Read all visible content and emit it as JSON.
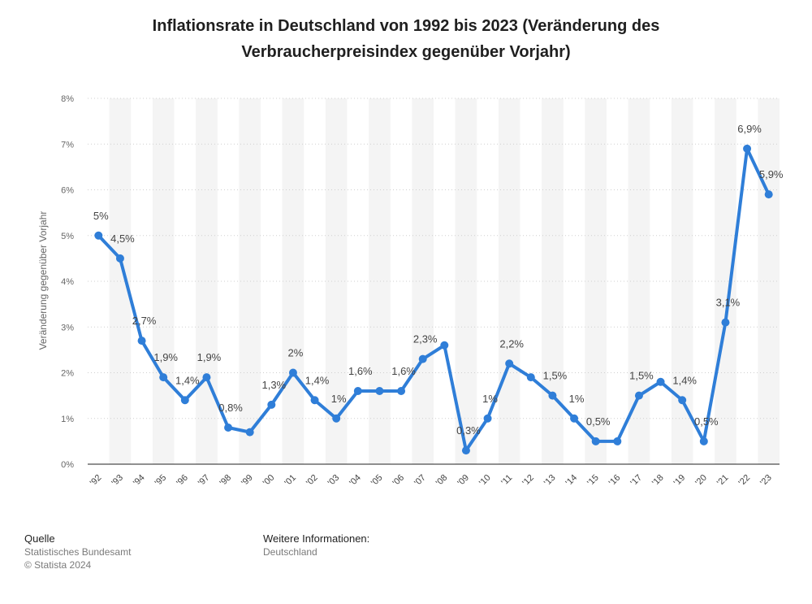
{
  "chart_data": {
    "type": "line",
    "title": "Inflationsrate in Deutschland von 1992 bis 2023 (Veränderung des Verbraucherpreisindex gegenüber Vorjahr)",
    "ylabel": "Veränderung gegenüber Vorjahr",
    "xlabel": "",
    "ylim": [
      0,
      8
    ],
    "yticks": [
      "0%",
      "1%",
      "2%",
      "3%",
      "4%",
      "5%",
      "6%",
      "7%",
      "8%"
    ],
    "categories": [
      "'92",
      "'93",
      "'94",
      "'95",
      "'96",
      "'97",
      "'98",
      "'99",
      "'00",
      "'01",
      "'02",
      "'03",
      "'04",
      "'05",
      "'06",
      "'07",
      "'08",
      "'09",
      "'10",
      "'11",
      "'12",
      "'13",
      "'14",
      "'15",
      "'16",
      "'17",
      "'18",
      "'19",
      "'20",
      "'21",
      "'22",
      "'23"
    ],
    "values": [
      5.0,
      4.5,
      2.7,
      1.9,
      1.4,
      1.9,
      0.8,
      0.7,
      1.3,
      2.0,
      1.4,
      1.0,
      1.6,
      1.6,
      1.6,
      2.3,
      2.6,
      0.3,
      1.0,
      2.2,
      1.9,
      1.5,
      1.0,
      0.5,
      0.5,
      1.5,
      1.8,
      1.4,
      0.5,
      3.1,
      6.9,
      5.9
    ],
    "data_labels": [
      "5%",
      "4,5%",
      "2,7%",
      "1,9%",
      "1,4%",
      "1,9%",
      "0,8%",
      "",
      "1,3%",
      "2%",
      "1,4%",
      "1%",
      "1,6%",
      "",
      "1,6%",
      "2,3%",
      "",
      "0,3%",
      "1%",
      "2,2%",
      "",
      "1,5%",
      "1%",
      "0,5%",
      "",
      "1,5%",
      "",
      "1,4%",
      "0,5%",
      "3,1%",
      "6,9%",
      "5,9%"
    ],
    "grid": true,
    "legend": "none",
    "colors": {
      "line": "#2f7ed8",
      "band": "#f4f4f4",
      "grid": "#cfcfcf",
      "axis": "#222222",
      "label": "#444444"
    }
  },
  "footer": {
    "source_heading": "Quelle",
    "source_name": "Statistisches Bundesamt",
    "copyright": "© Statista 2024",
    "info_heading": "Weitere Informationen:",
    "info_text": "Deutschland"
  }
}
